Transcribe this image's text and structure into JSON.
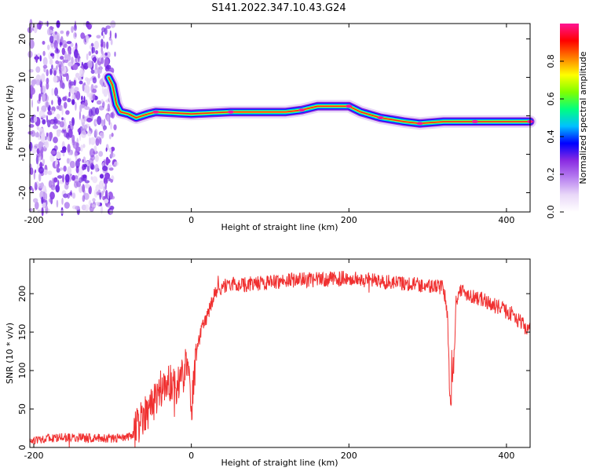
{
  "title": "S141.2022.347.10.43.G24",
  "chart_data": [
    {
      "type": "heatmap",
      "xlabel": "Height of straight line (km)",
      "ylabel": "Frequency (Hz)",
      "xlim": [
        -205,
        430
      ],
      "ylim": [
        -25,
        24
      ],
      "xticks": [
        -200,
        0,
        200,
        400
      ],
      "yticks": [
        -20,
        -10,
        0,
        10,
        20
      ],
      "colorbar": {
        "label": "Normalized spectral amplitude",
        "range": [
          0,
          1
        ],
        "ticks": [
          0,
          0.2,
          0.4,
          0.6,
          0.8
        ],
        "colormap": [
          "#ffffff",
          "#e9d8f8",
          "#b77ff0",
          "#8a2be2",
          "#0000ff",
          "#00c0ff",
          "#00ff80",
          "#80ff00",
          "#ffff00",
          "#ff8000",
          "#ff0000",
          "#ff1493"
        ]
      },
      "noise_region": {
        "x": [
          -205,
          -105
        ],
        "freq": [
          -25,
          24
        ],
        "amplitude": 0.15
      },
      "ridge": [
        {
          "x": -105,
          "y": 10
        },
        {
          "x": -100,
          "y": 8
        },
        {
          "x": -95,
          "y": 3
        },
        {
          "x": -90,
          "y": 1
        },
        {
          "x": -80,
          "y": 0.5
        },
        {
          "x": -70,
          "y": -0.5
        },
        {
          "x": -55,
          "y": 0.5
        },
        {
          "x": -45,
          "y": 1
        },
        {
          "x": 0,
          "y": 0.5
        },
        {
          "x": 50,
          "y": 1
        },
        {
          "x": 120,
          "y": 1
        },
        {
          "x": 140,
          "y": 1.5
        },
        {
          "x": 160,
          "y": 2.5
        },
        {
          "x": 200,
          "y": 2.5
        },
        {
          "x": 215,
          "y": 1
        },
        {
          "x": 240,
          "y": -0.5
        },
        {
          "x": 270,
          "y": -1.5
        },
        {
          "x": 290,
          "y": -2
        },
        {
          "x": 320,
          "y": -1.5
        },
        {
          "x": 360,
          "y": -1.5
        },
        {
          "x": 400,
          "y": -1.5
        },
        {
          "x": 430,
          "y": -1.5
        }
      ]
    },
    {
      "type": "line",
      "xlabel": "Height of straight line (km)",
      "ylabel": "SNR (10 * v/v)",
      "xlim": [
        -205,
        430
      ],
      "ylim": [
        0,
        245
      ],
      "xticks": [
        -200,
        0,
        200,
        400
      ],
      "yticks": [
        0,
        50,
        100,
        150,
        200
      ],
      "series": [
        {
          "color": "#f03030",
          "x": [
            -205,
            -180,
            -150,
            -120,
            -100,
            -90,
            -80,
            -75,
            -70,
            -65,
            -60,
            -50,
            -40,
            -30,
            -20,
            -10,
            -5,
            -2,
            0,
            5,
            10,
            15,
            20,
            25,
            30,
            40,
            50,
            70,
            100,
            130,
            160,
            190,
            220,
            250,
            280,
            300,
            320,
            325,
            328,
            330,
            333,
            336,
            340,
            350,
            370,
            390,
            410,
            420,
            430
          ],
          "values": [
            10,
            12,
            13,
            12,
            12,
            12,
            13,
            15,
            25,
            35,
            45,
            55,
            75,
            85,
            80,
            95,
            120,
            95,
            45,
            110,
            140,
            160,
            170,
            185,
            200,
            210,
            212,
            212,
            215,
            218,
            218,
            220,
            218,
            215,
            213,
            210,
            208,
            175,
            80,
            80,
            100,
            190,
            205,
            200,
            192,
            182,
            172,
            160,
            152
          ]
        }
      ]
    }
  ]
}
